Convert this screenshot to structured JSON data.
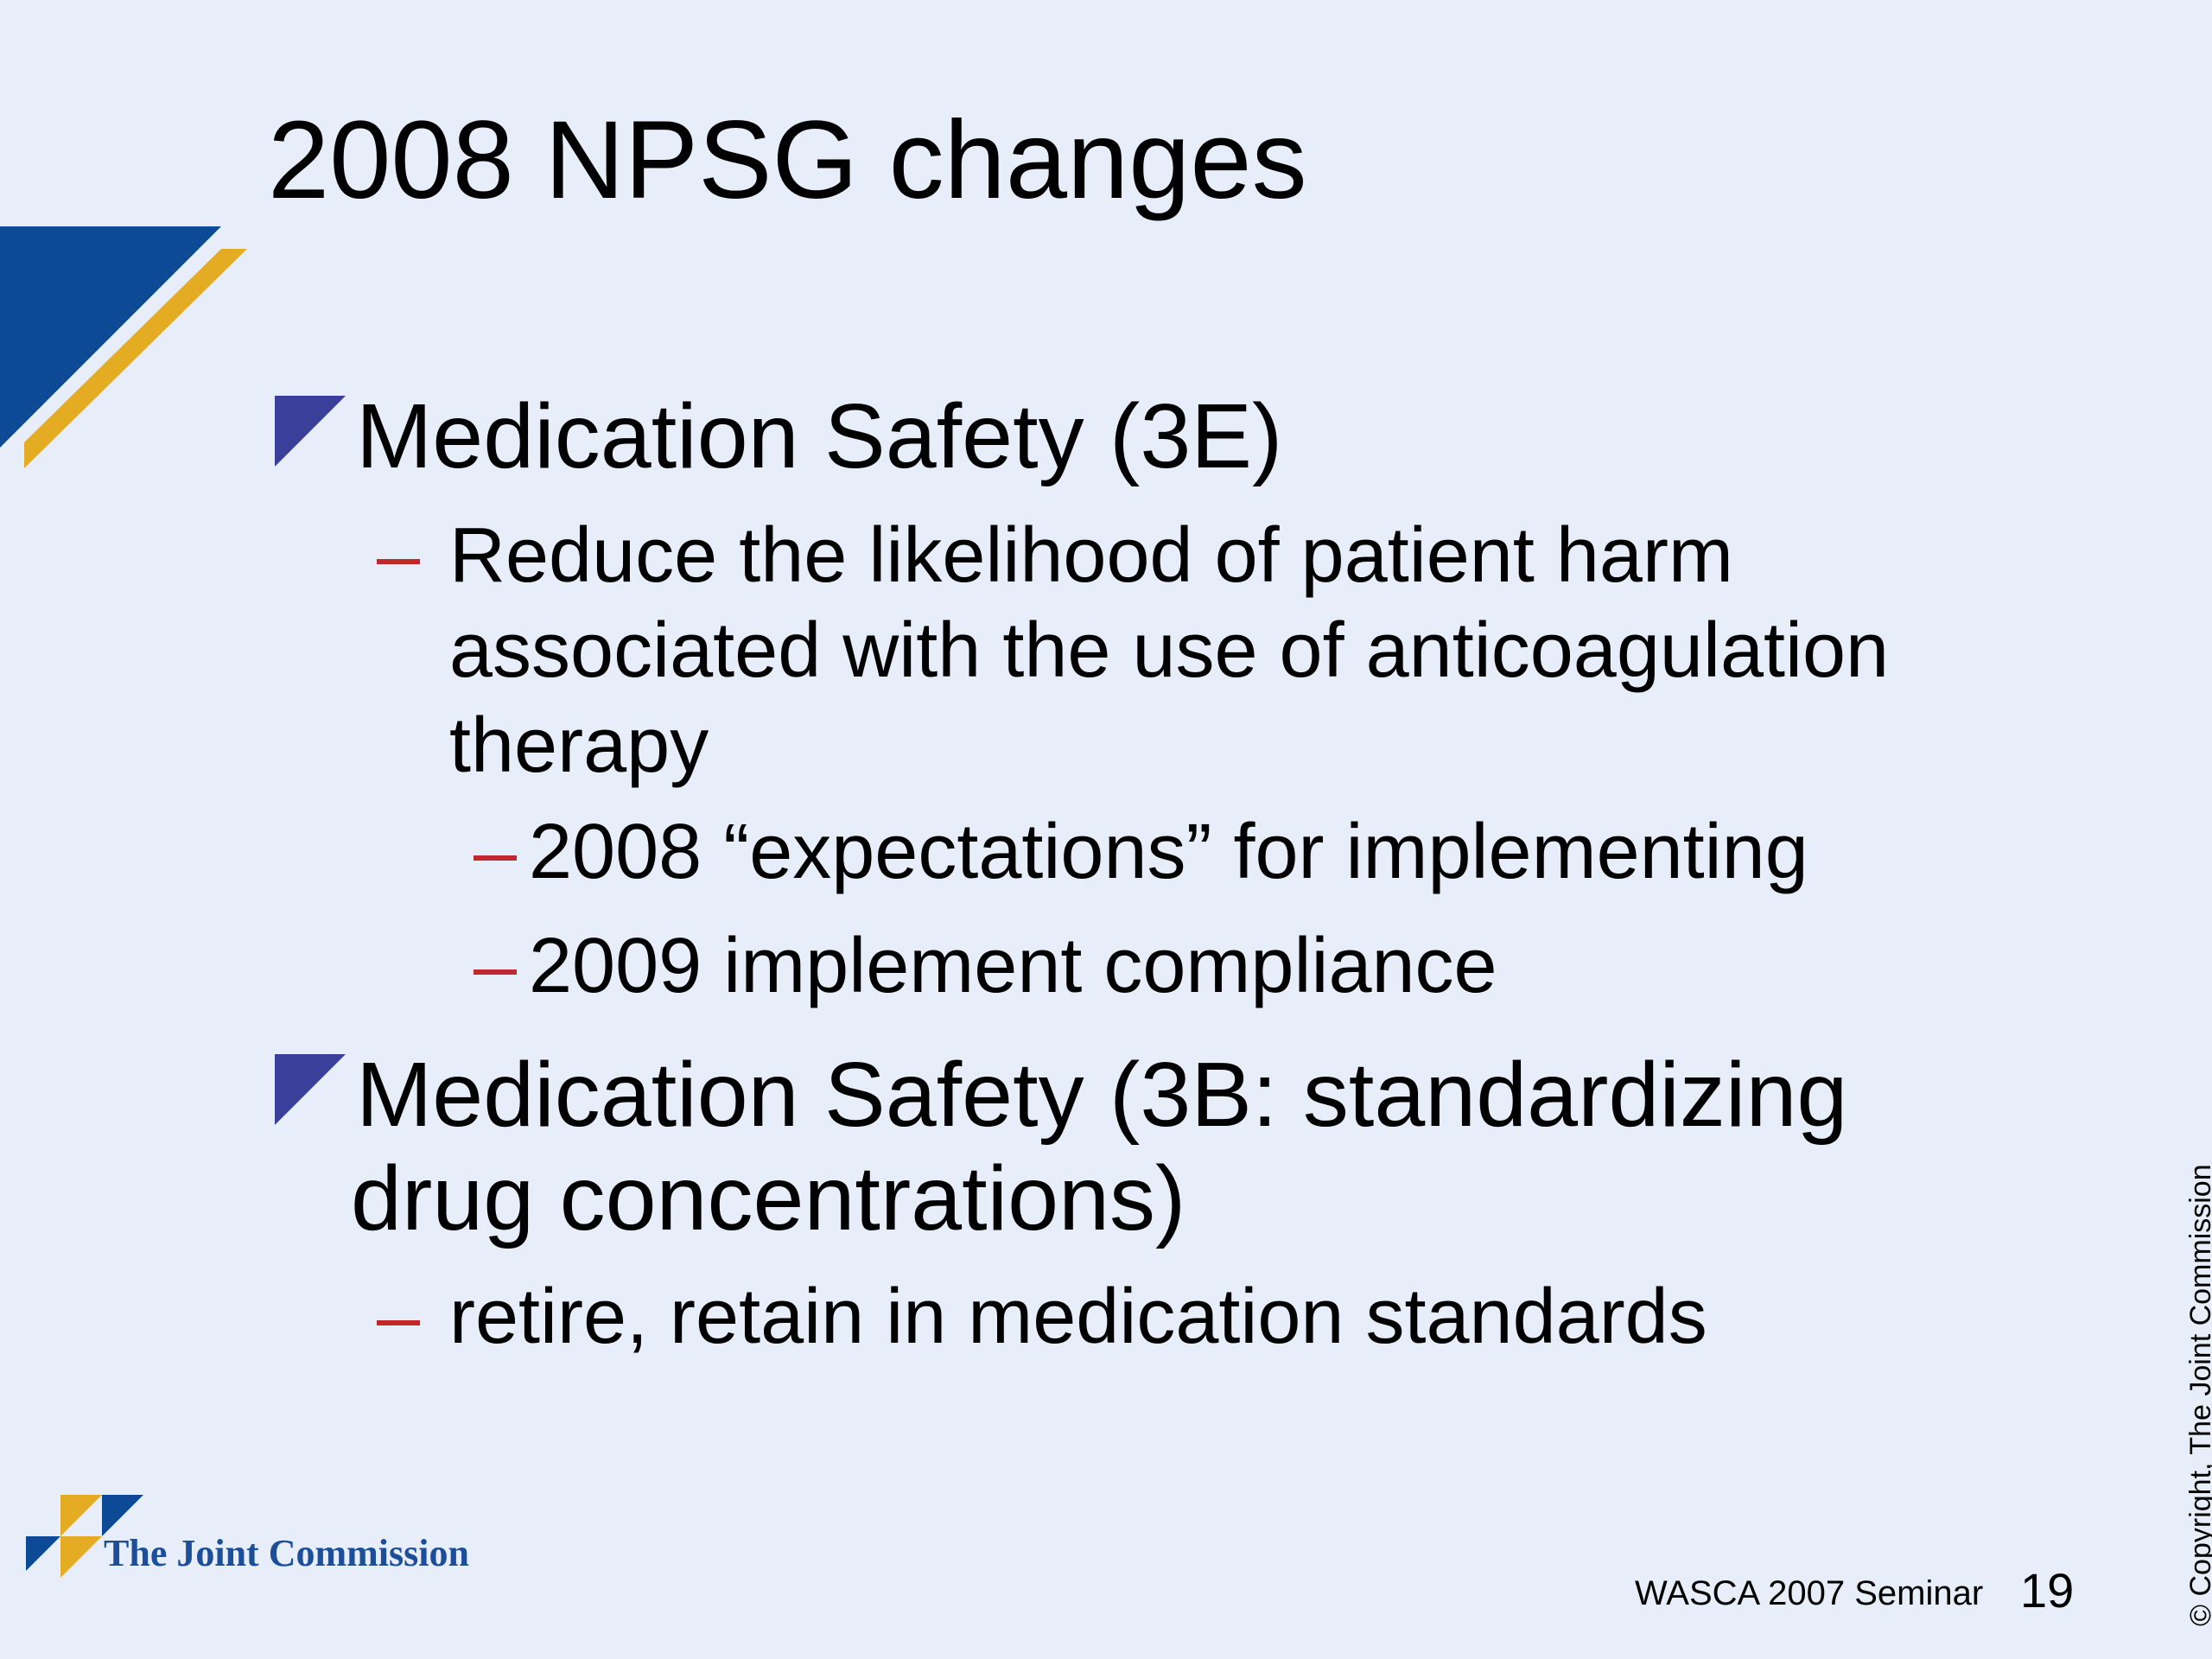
{
  "slide": {
    "title": "2008 NPSG changes",
    "bullets": [
      {
        "text": "Medication Safety (3E)",
        "subitems": [
          {
            "dash": "–",
            "lines": [
              "Reduce the likelihood of patient harm",
              "associated with the use of anticoagulation",
              "therapy"
            ],
            "subitems": [
              {
                "dash": "–",
                "text": "2008 “expectations” for implementing"
              },
              {
                "dash": "–",
                "text": "2009 implement compliance"
              }
            ]
          }
        ]
      },
      {
        "lines": [
          "Medication Safety (3B: standardizing",
          "drug concentrations)"
        ],
        "subitems": [
          {
            "dash": "–",
            "text": "retire, retain in medication standards"
          }
        ]
      }
    ]
  },
  "footer": {
    "logo_text": "The Joint Commission",
    "seminar": "WASCA 2007 Seminar",
    "page_number": "19",
    "copyright": "© Copyright, The Joint Commission"
  },
  "colors": {
    "background": "#e8eef9",
    "bullet_triangle": "#3a3f9a",
    "dash": "#c0282d",
    "corner_blue": "#0d4a96",
    "corner_gold": "#e3ac22",
    "logo_text": "#1d4e9a"
  }
}
